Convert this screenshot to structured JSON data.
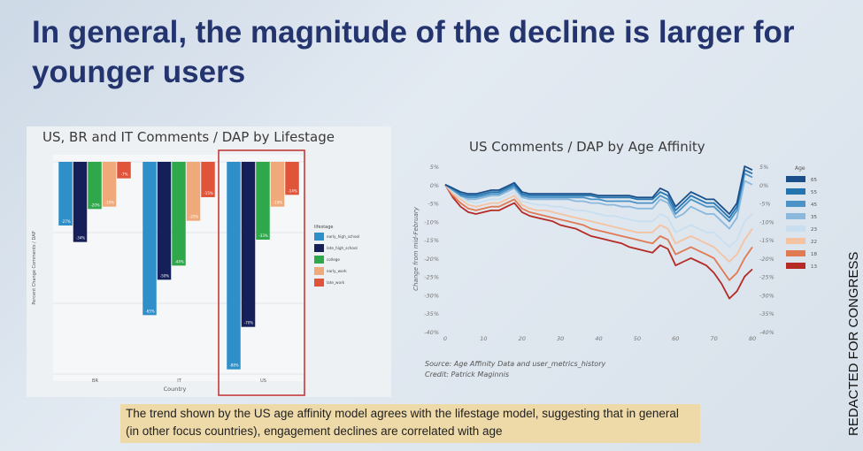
{
  "slide": {
    "title": "In general, the magnitude of the decline is larger for younger users",
    "callout": "The trend shown by the US age affinity model agrees with the lifestage model, suggesting that in general (in other focus countries), engagement declines are correlated with age",
    "side_label": "REDACTED FOR CONGRESS",
    "source_line1": "Source: Age Affinity Data and user_metrics_history",
    "source_line2": "Credit: Patrick Maginnis"
  },
  "chart_data": [
    {
      "type": "bar",
      "title": "US, BR and IT Comments / DAP by Lifestage",
      "xlabel": "Country",
      "ylabel": "Percent Change Comments / DAP",
      "categories": [
        "BR",
        "IT",
        "US"
      ],
      "ylim": [
        -90,
        0
      ],
      "legend_title": "lifestage",
      "legend_position": "right",
      "highlight_category": "US",
      "series": [
        {
          "name": "early_high_school",
          "color": "#2f8fc9",
          "values": [
            -27,
            -65,
            -88
          ]
        },
        {
          "name": "late_high_school",
          "color": "#15205a",
          "values": [
            -34,
            -50,
            -70
          ]
        },
        {
          "name": "college",
          "color": "#2ea84a",
          "values": [
            -20,
            -44,
            -33
          ]
        },
        {
          "name": "early_work",
          "color": "#f0a97a",
          "values": [
            -19,
            -25,
            -19
          ]
        },
        {
          "name": "late_work",
          "color": "#e0553a",
          "values": [
            -7,
            -15,
            -14
          ]
        }
      ],
      "bar_labels": [
        "-27%",
        "-34%",
        "-20%",
        "-19%",
        "-7%",
        "-65%",
        "-50%",
        "-44%",
        "-25%",
        "-15%",
        "-88%",
        "-70%",
        "-33%",
        "-19%",
        "-14%"
      ]
    },
    {
      "type": "line",
      "title": "US Comments / DAP by Age Affinity",
      "ylabel": "Change from mid-February",
      "ylim": [
        -40,
        5
      ],
      "yticks_left": [
        "5%",
        "0%",
        "-5%",
        "-10%",
        "-15%",
        "-20%",
        "-25%",
        "-30%",
        "-35%",
        "-40%"
      ],
      "yticks_right": [
        "5%",
        "0%",
        "-5%",
        "-10%",
        "-15%",
        "-20%",
        "-25%",
        "-30%",
        "-35%",
        "-40%"
      ],
      "xticks": [
        "0",
        "10",
        "20",
        "30",
        "40",
        "50",
        "60",
        "70",
        "80"
      ],
      "legend_title": "Age",
      "legend_position": "right",
      "x": [
        0,
        2,
        4,
        6,
        8,
        10,
        12,
        14,
        16,
        18,
        20,
        22,
        24,
        26,
        28,
        30,
        32,
        34,
        36,
        38,
        40,
        42,
        44,
        46,
        48,
        50,
        52,
        54,
        56,
        58,
        60,
        62,
        64,
        66,
        68,
        70,
        72,
        74,
        76,
        78,
        80
      ],
      "series": [
        {
          "name": "65",
          "color": "#1a4f8a",
          "values": [
            0,
            -1,
            -2,
            -2.5,
            -2.5,
            -2,
            -1.5,
            -1.5,
            -0.5,
            0.5,
            -2,
            -2.5,
            -2.5,
            -2.5,
            -2.5,
            -2.5,
            -2.5,
            -2.5,
            -2.5,
            -2.5,
            -3,
            -3,
            -3,
            -3,
            -3,
            -3.5,
            -3.5,
            -3.5,
            -1,
            -2,
            -6,
            -4,
            -2,
            -3,
            -4,
            -4,
            -6,
            -8,
            -5,
            5,
            4
          ]
        },
        {
          "name": "55",
          "color": "#2474b0",
          "values": [
            0,
            -1,
            -2.5,
            -3,
            -3,
            -2.5,
            -2,
            -2,
            -1,
            0,
            -2.5,
            -3,
            -3,
            -3,
            -3,
            -3,
            -3,
            -3,
            -3,
            -3,
            -3.5,
            -3.5,
            -3.5,
            -3.5,
            -3.5,
            -4,
            -4,
            -4,
            -2,
            -3,
            -7,
            -5,
            -3,
            -4,
            -5,
            -5,
            -7,
            -9,
            -6,
            4,
            3
          ]
        },
        {
          "name": "45",
          "color": "#4b93c7",
          "values": [
            0,
            -1.5,
            -3,
            -3.5,
            -3.5,
            -3,
            -2.5,
            -2.5,
            -1.5,
            -0.5,
            -3,
            -3.5,
            -3.5,
            -3.5,
            -3.5,
            -3.5,
            -3.5,
            -3.5,
            -3.5,
            -4,
            -4,
            -4.5,
            -4.5,
            -4.5,
            -4.5,
            -5,
            -5,
            -5,
            -3,
            -4,
            -8,
            -6,
            -4,
            -5,
            -6,
            -6,
            -8,
            -10,
            -7,
            3,
            2
          ]
        },
        {
          "name": "35",
          "color": "#8ab9dd",
          "values": [
            0,
            -1.5,
            -3,
            -4,
            -4,
            -3.5,
            -3,
            -3,
            -2,
            -1,
            -3.5,
            -4,
            -4,
            -4,
            -4,
            -4,
            -4,
            -4.5,
            -4.5,
            -5,
            -5,
            -5.5,
            -5.5,
            -6,
            -6,
            -6.5,
            -6.5,
            -6.5,
            -4,
            -5,
            -9,
            -8,
            -6,
            -7,
            -8,
            -8,
            -10,
            -12,
            -9,
            1,
            0
          ]
        },
        {
          "name": "23",
          "color": "#c9dff0",
          "values": [
            0,
            -2,
            -3.5,
            -4.5,
            -5,
            -4.5,
            -4,
            -4,
            -3,
            -2,
            -4.5,
            -5,
            -5.5,
            -5.5,
            -6,
            -6,
            -6.5,
            -7,
            -7,
            -7.5,
            -8,
            -8.5,
            -8.5,
            -9,
            -9.5,
            -10,
            -10,
            -10,
            -8,
            -9,
            -13,
            -12,
            -11,
            -12,
            -13,
            -13,
            -15,
            -17,
            -15,
            -10,
            -8
          ]
        },
        {
          "name": "22",
          "color": "#f4c3a2",
          "values": [
            0,
            -2.5,
            -4,
            -5.5,
            -6,
            -5.5,
            -5,
            -5,
            -4,
            -3,
            -5.5,
            -6.5,
            -7,
            -7,
            -7.5,
            -8,
            -8.5,
            -9,
            -9.5,
            -10,
            -10.5,
            -11,
            -11.5,
            -12,
            -12.5,
            -13,
            -13,
            -13,
            -11,
            -12,
            -16,
            -15,
            -14,
            -15,
            -16,
            -17,
            -19,
            -21,
            -19,
            -15,
            -12
          ]
        },
        {
          "name": "18",
          "color": "#e07a52",
          "values": [
            0,
            -3,
            -5,
            -6.5,
            -7,
            -6.5,
            -6,
            -6,
            -5,
            -4,
            -6.5,
            -7.5,
            -8,
            -8.5,
            -9,
            -9.5,
            -10,
            -10.5,
            -11,
            -12,
            -12.5,
            -13,
            -13.5,
            -14,
            -14.5,
            -15,
            -15.5,
            -16,
            -14,
            -15,
            -19,
            -18,
            -17,
            -18,
            -19,
            -20,
            -23,
            -26,
            -24,
            -20,
            -17
          ]
        },
        {
          "name": "13",
          "color": "#b52a25",
          "values": [
            0,
            -3.5,
            -6,
            -7.5,
            -8,
            -7.5,
            -7,
            -7,
            -6,
            -5,
            -7.5,
            -8.5,
            -9,
            -9.5,
            -10,
            -11,
            -11.5,
            -12,
            -13,
            -14,
            -14.5,
            -15,
            -15.5,
            -16,
            -17,
            -17.5,
            -18,
            -18.5,
            -16.5,
            -17.5,
            -22,
            -21,
            -20,
            -21,
            -22,
            -24,
            -27,
            -31,
            -29,
            -25,
            -23
          ]
        }
      ]
    }
  ]
}
